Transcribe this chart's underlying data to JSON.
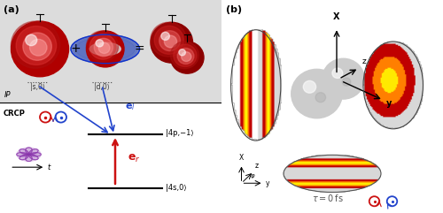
{
  "fig_width": 5.0,
  "fig_height": 2.41,
  "dpi": 100,
  "panel_a_label": "(a)",
  "panel_b_label": "(b)",
  "ip_label": "IP",
  "crcp_label": "CRCP",
  "t_label": "t",
  "s0_label": "|s,0⟩",
  "d0_label": "|d,0⟩",
  "el_color": "#2244cc",
  "er_color": "#cc1111",
  "state_4p_label": "|4p,−1⟩",
  "state_4s_label": "|4s,0⟩",
  "tau_label": "τ = 0 fs",
  "x_axis": "X",
  "y_axis": "y",
  "z_axis": "z"
}
